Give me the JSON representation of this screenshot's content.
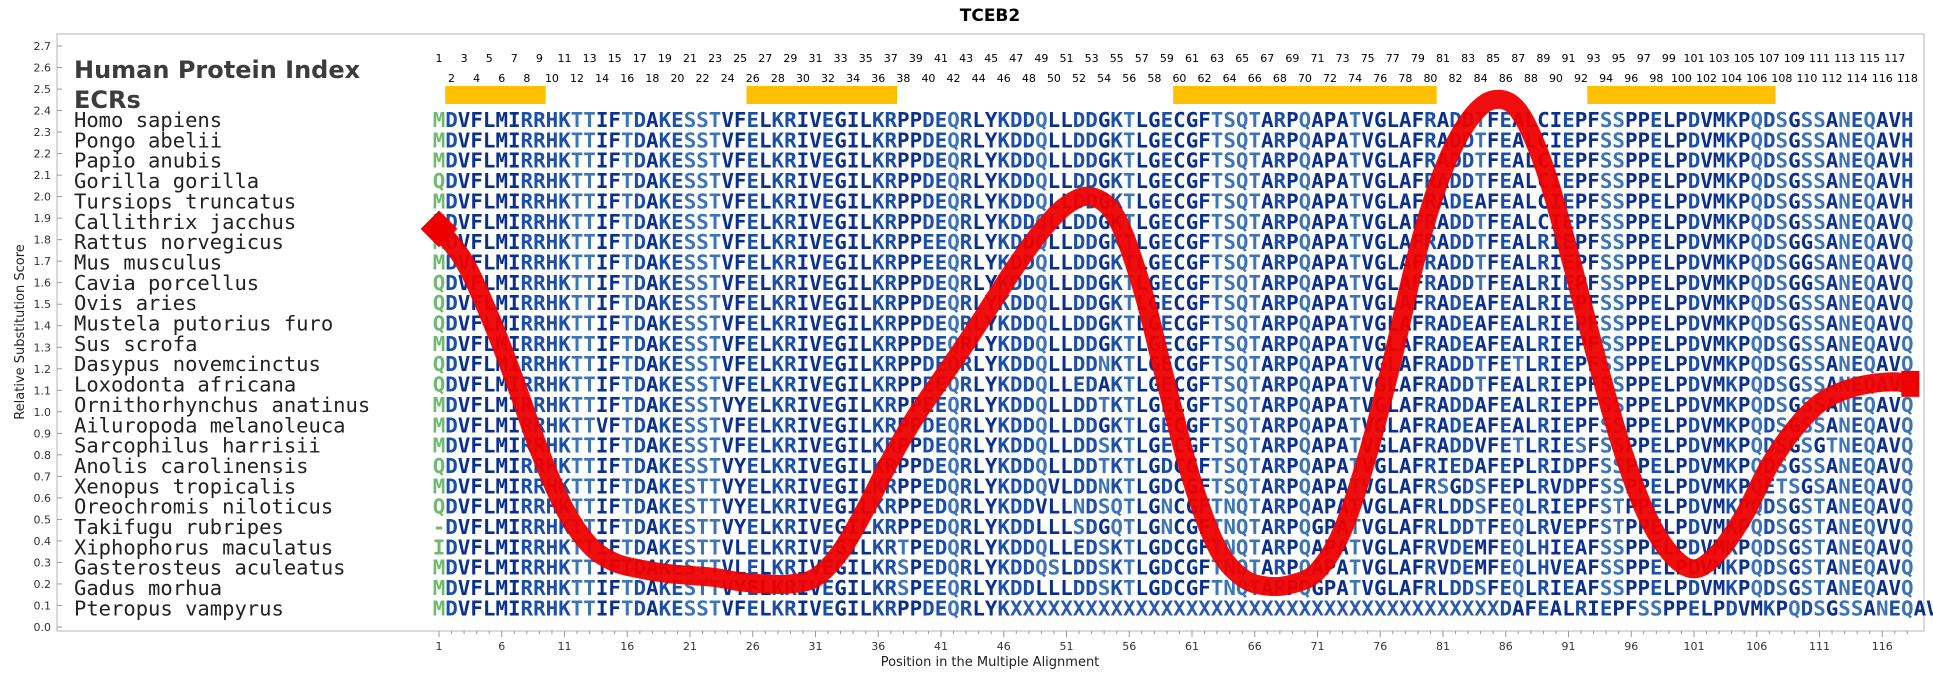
{
  "chart_data": {
    "type": "line",
    "title": "TCEB2",
    "xlabel": "Position in the Multiple Alignment",
    "ylabel": "Relative Substitution Score",
    "ylim": [
      0,
      2.7
    ],
    "xlim": [
      1,
      118
    ],
    "y_ticks": [
      "0.0",
      "0.1",
      "0.2",
      "0.3",
      "0.4",
      "0.5",
      "0.6",
      "0.7",
      "0.8",
      "0.9",
      "1.0",
      "1.1",
      "1.2",
      "1.3",
      "1.4",
      "1.5",
      "1.6",
      "1.7",
      "1.8",
      "1.9",
      "2.0",
      "2.1",
      "2.2",
      "2.3",
      "2.4",
      "2.5",
      "2.6",
      "2.7"
    ],
    "x_ticks": [
      1,
      6,
      11,
      16,
      21,
      26,
      31,
      36,
      41,
      46,
      51,
      56,
      61,
      66,
      71,
      76,
      81,
      86,
      91,
      96,
      101,
      106,
      111,
      116
    ],
    "curve_color": "#ee0000",
    "series": [
      {
        "x": [
          1,
          3,
          5,
          7,
          9,
          11,
          13,
          15,
          17,
          19,
          21,
          23,
          25,
          27,
          29,
          31,
          33,
          35,
          37,
          39,
          41,
          43,
          45,
          47,
          49,
          51,
          53,
          55,
          57,
          59,
          61,
          63,
          65,
          67,
          69,
          71,
          73,
          75,
          77,
          79,
          81,
          83,
          85,
          87,
          89,
          91,
          93,
          95,
          97,
          99,
          101,
          103,
          105,
          107,
          109,
          111,
          113,
          115,
          117,
          118
        ],
        "values": [
          1.85,
          1.7,
          1.45,
          1.15,
          0.82,
          0.55,
          0.38,
          0.3,
          0.27,
          0.25,
          0.24,
          0.23,
          0.21,
          0.2,
          0.2,
          0.23,
          0.35,
          0.55,
          0.78,
          0.98,
          1.15,
          1.32,
          1.5,
          1.68,
          1.84,
          1.96,
          2.0,
          1.9,
          1.58,
          1.12,
          0.68,
          0.37,
          0.23,
          0.19,
          0.2,
          0.26,
          0.45,
          0.8,
          1.25,
          1.75,
          2.12,
          2.35,
          2.45,
          2.4,
          2.15,
          1.75,
          1.3,
          0.88,
          0.55,
          0.35,
          0.27,
          0.35,
          0.52,
          0.75,
          0.92,
          1.04,
          1.1,
          1.13,
          1.14,
          1.13
        ]
      }
    ],
    "position_top_row": [
      1,
      3,
      5,
      7,
      9,
      11,
      13,
      15,
      17,
      19,
      21,
      23,
      25,
      27,
      29,
      31,
      33,
      35,
      37,
      39,
      41,
      43,
      45,
      47,
      49,
      51,
      53,
      55,
      57,
      59,
      61,
      63,
      65,
      67,
      69,
      71,
      73,
      75,
      77,
      79,
      81,
      83,
      85,
      87,
      89,
      91,
      93,
      95,
      97,
      99,
      101,
      103,
      105,
      107,
      109,
      111,
      113,
      115,
      117
    ],
    "position_bottom_row": [
      2,
      4,
      6,
      8,
      10,
      12,
      14,
      16,
      18,
      20,
      22,
      24,
      26,
      28,
      30,
      32,
      34,
      36,
      38,
      40,
      42,
      44,
      46,
      48,
      50,
      52,
      54,
      56,
      58,
      60,
      62,
      64,
      66,
      68,
      70,
      72,
      74,
      76,
      78,
      80,
      82,
      84,
      86,
      88,
      90,
      92,
      94,
      96,
      98,
      100,
      102,
      104,
      106,
      108,
      110,
      112,
      114,
      116,
      118
    ],
    "ecr_regions": [
      [
        2,
        9
      ],
      [
        26,
        37
      ],
      [
        60,
        80
      ],
      [
        93,
        107
      ]
    ],
    "ecr_color": "#ffc000",
    "header_title": "Human Protein Index",
    "ecr_label": "ECRs",
    "alignment": [
      {
        "species": "Homo sapiens",
        "seq": "MDVFLMIRRHKTTIFTDAKESSTVFELKRIVEGILKRPPDEQRLYKDDQLLDDGKTLGECGFTSQTARPQAPATVGLAFRADDTFEALCIEPFSSPPELPDVMKPQDSGSSANEQAVH"
      },
      {
        "species": "Pongo abelii",
        "seq": "MDVFLMIRRHKTTIFTDAKESSTVFELKRIVEGILKRPPDEQRLYKDDQLLDDGKTLGECGFTSQTARPQAPATVGLAFRADDTFEALCIEPFSSPPELPDVMKPQDSGSSANEQAVH"
      },
      {
        "species": "Papio anubis",
        "seq": "MDVFLMIRRHKTTIFTDAKESSTVFELKRIVEGILKRPPDEQRLYKDDQLLDDGKTLGECGFTSQTARPQAPATVGLAFRADDTFEALCIEPFSSPPELPDVMKPQDSGSSANEQAVH"
      },
      {
        "species": "Gorilla gorilla",
        "seq": "QDVFLMIRRHKTTIFTDAKESSTVFELKRIVEGILKRPPDEQRLYKDDQLLDDGKTLGECGFTSQTARPQAPATVGLAFRADDTFEALCIEPFSSPPELPDVMKPQDSGSSANEQAVH"
      },
      {
        "species": "Tursiops truncatus",
        "seq": "MDVFLMIRRHKTTIFTDAKESSTVFELKRIVEGILKRPPDEQRLYKDDQLLDDGKTLGECGFTSQTARPQAPATVGLAFRADEAFEALCIEPFSSPPELPDVMKPQDSGSSANEQAVH"
      },
      {
        "species": "Callithrix jacchus",
        "seq": "MDVFLMIRRHKTTIFTDAKESSTVFELKRIVEGILKRPPDEQRLYKDDQLLDDGKTLGECGFTSQTARPQAPATVGLAFRADDTFEALCIEPFSSPPELPDVMKPQDSGSSANEQAVQ"
      },
      {
        "species": "Rattus norvegicus",
        "seq": "MDVFLMIRRHKTTIFTDAKESSTVFELKRIVEGILKRPPEEQRLYKDDQLLDDGKTLGECGFTSQTARPQAPATVGLAFRADDTFEALRIEPFSSPPELPDVMKPQDSGGSANEQAVQ"
      },
      {
        "species": "Mus musculus",
        "seq": "MDVFLMIRRHKTTIFTDAKESSTVFELKRIVEGILKRPPEEQRLYKDDQLLDDGKTLGECGFTSQTARPQAPATVGLAFRADDTFEALRIEPFSSPPELPDVMKPQDSGGSANEQAVQ"
      },
      {
        "species": "Cavia porcellus",
        "seq": "QDVFLMIRRHKTTIFTDAKESSTVFELKRIVEGILKRPPDEQRLYKDDQLLDDGKTLGECGFTSQTARPQAPATVGLAFRADDTFEALRIEPFSSPPELPDVMKPQDSGGSANEQAVQ"
      },
      {
        "species": "Ovis aries",
        "seq": "QDVFLMIRRHKTTIFTDAKESSTVFELKRIVEGILKRPPDEQRLYKDDQLLDDGKTLGECGFTSQTARPQAPATVGLAFRADEAFEALRIEPFSSPPELPDVMKPQDSGSSANEQAVQ"
      },
      {
        "species": "Mustela putorius furo",
        "seq": "QDVFLMIRRHKTTIFTDAKESSTVFELKRIVEGILKRPPDEQRLYKDDQLLDDGKTLGECGFTSQTARPQAPATVGLAFRADEAFEALRIEPFSSPPELPDVMKPQDSGSSANEQAVQ"
      },
      {
        "species": "Sus scrofa",
        "seq": "MDVFLMIRRHKTTIFTDAKESSTVFELKRIVEGILKRPPDEQRLYKDDQLLDDGKTLGECGFTSQTARPQAPATVGLAFRADEAFEALRIEPFSSPPELPDVMKPQDSGSSANEQAVQ"
      },
      {
        "species": "Dasypus novemcinctus",
        "seq": "QDVFLMIRRHKTTIFTDAKESSTVFELKRIVEGILKRPPDEQRLYKDDQLLDDNKTLGECGFTSQTARPQAPATVGLAFRADDTFETLRIEPFSSPPELPDVMKPQDSGSSANEQAVQ"
      },
      {
        "species": "Loxodonta africana",
        "seq": "QDVFLMIRRHKTTIFTDAKESSTVFELKRIVEGILKRPPEEQRLYKDDQLLEDAKTLGECGFTSQTARPQAPATVGLAFRADDTFEALRIEPFSSPPELPDVMKPQDSGSSANEQAVQ"
      },
      {
        "species": "Ornithorhynchus anatinus",
        "seq": "MDVFLMIRRHKTTIFTDAKESSTVYELKRIVEGILKRPPEEQRLYKDDQLLDDTKTLGECGFTSQTARPQAPATVGLAFRADDAFEALRIEPFSSPPELPDVMKPQDSGSSANEQAVQ"
      },
      {
        "species": "Ailuropoda melanoleuca",
        "seq": "MDVFLMIRRHKTTVFTDAKESSTVFELKRIVEGILKRPPDEQRLYKDDQLLDDGKTLGECGFTSQTARPQAPATVGLAFRADEAFEALRIEPFSSPPELPDVMKPQDSGSSANEQAVQ"
      },
      {
        "species": "Sarcophilus harrisii",
        "seq": "MDVFLMIRRHKTTIFTDAKESSTVFELKRIVEGILKRPPDEQRLYKDDQLLDDSKTLGECGFTSQTARPQAPATVGLAFRADDVFETLRIESFSSPPELPDVMKPQDSGSGTNEQAVQ"
      },
      {
        "species": "Anolis carolinensis",
        "seq": "QDVFLMIRRHKTTIFTDAKESSTVYELKRIVEGILKRPPDEQRLYKDDQLLDDTKTLGDCGFTSQTARPQAPATVGLAFRIEDAFEPLRIDPFSSPPELPDVMKPQDSGSSANEQAVQ"
      },
      {
        "species": "Xenopus tropicalis",
        "seq": "MDVFLMIRRHKTTIFTDAKESTTVYELKRIVEGILKRPPEDQRLYKDDQVLDDNKTLGDCGFTSQTARPQAPATVGLAFRSGDSFEPLRVDPFSSPPELPDVMKPQETSGSANEQAVQ"
      },
      {
        "species": "Oreochromis niloticus",
        "seq": "QDVFLMIRRHKTTIFTDAKESTTVYELKRIVEGILKRPPEDQRLYKDDVLLNDSQTLGNCGFTNQTARPQAPATVGLAFRLDDSFEQLRIEPFSTPPELPDVMKPQDSGSTANEQAVQ"
      },
      {
        "species": "Takifugu rubripes",
        "seq": "-DVFLMIRRHKTTIFTDAKESTTVYELKRIVEGILKRPPEDQRLYKDDLLLSDGQTLGNCGFTNQTARPQGPATVGLAFRLDDTFEQLRVEPFSTPPELPDVMKPQDSGSTANEQVVQ"
      },
      {
        "species": "Xiphophorus maculatus",
        "seq": "IDVFLMIRRHKTTIFTDAKESTTVLELKRIVEGILKRTPEDQRLYKDDQLLEDSKTLGDCGFTNQTARPQAPATVGLAFRVDEMFEQLHIEAFSSPPELPDVMKPQDSGSTANEQAVQ"
      },
      {
        "species": "Gasterosteus aculeatus",
        "seq": "MDVFLMIRRHKTTIFTDAKESTTVLELKRIVEGILKRSPEDQRLYKDDQSLDDSKTLGDCGFTNQTARPQAPATVGLAFRVDEMFEQLHVEAFSSPPELPDVMKPQDSGSTANEQAVQ"
      },
      {
        "species": "Gadus morhua",
        "seq": "MDVFLMIRRHKTTIFTDAKESTTVYELKRIVEGILKRSPEEQRLYKDDLLLDDSKTLGDCGFTNQTARPQGPATVGLAFRLDDSFEQLRIEAFSSPPELPDVMKPQDSGSTANEQAVQ"
      },
      {
        "species": "Pteropus vampyrus",
        "seq": "MDVFLMIRRHKTTIFTDAKESSTVFELKRIVEGILKRPPDEQRLYKXXXXXXXXXXXXXXXXXXXXXXXXXXXXXXXXXXXXXXXDAFEALRIEPFSSPPELPDVMKPQDSGSSANEQAVH"
      }
    ]
  }
}
